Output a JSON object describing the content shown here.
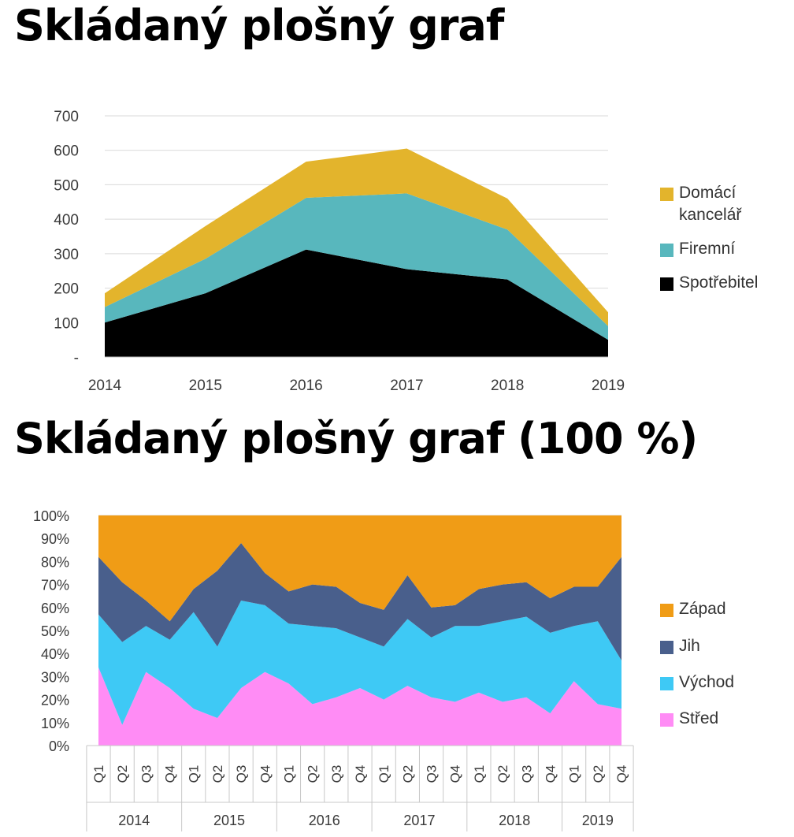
{
  "titles": {
    "stacked_area": "Skládaný plošný graf",
    "stacked_area_100": "Skládaný plošný graf (100 %)"
  },
  "chart_data": [
    {
      "type": "area",
      "stacked": true,
      "title": "Skládaný plošný graf",
      "x": [
        "2014",
        "2015",
        "2016",
        "2017",
        "2018",
        "2019"
      ],
      "series": [
        {
          "name": "Spotřebitel",
          "values": [
            100,
            185,
            312,
            255,
            225,
            50
          ],
          "color": "#000000"
        },
        {
          "name": "Firemní",
          "values": [
            45,
            100,
            150,
            220,
            145,
            40
          ],
          "color": "#58b7bd"
        },
        {
          "name": "Domácí kancelář",
          "values": [
            40,
            95,
            105,
            130,
            90,
            40
          ],
          "color": "#e3b42c"
        }
      ],
      "ylim": [
        0,
        700
      ],
      "yticks": [
        "-",
        "100",
        "200",
        "300",
        "400",
        "500",
        "600",
        "700"
      ],
      "grid": true,
      "legend": "right"
    },
    {
      "type": "area",
      "stacked": true,
      "percent": true,
      "title": "Skládaný plošný graf (100 %)",
      "quarters": [
        "Q1",
        "Q2",
        "Q3",
        "Q4"
      ],
      "years": [
        "2014",
        "2015",
        "2016",
        "2017",
        "2018",
        "2019"
      ],
      "series": [
        {
          "name": "Střed",
          "values": [
            34,
            9,
            32,
            25,
            16,
            12,
            25,
            32,
            27,
            18,
            21,
            25,
            20,
            26,
            21,
            19,
            23,
            19,
            21,
            14,
            28,
            18,
            16
          ],
          "color": "#ff8cf5"
        },
        {
          "name": "Východ",
          "values": [
            23,
            36,
            20,
            21,
            42,
            31,
            38,
            29,
            26,
            34,
            30,
            22,
            23,
            29,
            26,
            33,
            29,
            35,
            35,
            35,
            24,
            36,
            21
          ],
          "color": "#3ec9f5"
        },
        {
          "name": "Jih",
          "values": [
            25,
            26,
            11,
            8,
            10,
            33,
            25,
            14,
            14,
            18,
            18,
            15,
            16,
            19,
            13,
            9,
            16,
            16,
            15,
            15,
            17,
            15,
            45
          ],
          "color": "#495f8c"
        },
        {
          "name": "Západ",
          "values": [
            18,
            29,
            37,
            46,
            32,
            24,
            12,
            25,
            33,
            30,
            31,
            38,
            41,
            26,
            40,
            39,
            32,
            30,
            29,
            36,
            31,
            31,
            18
          ],
          "color": "#f09c16"
        }
      ],
      "ylim": [
        0,
        100
      ],
      "yticks": [
        "0%",
        "10%",
        "20%",
        "30%",
        "40%",
        "50%",
        "60%",
        "70%",
        "80%",
        "90%",
        "100%"
      ],
      "grid": true,
      "legend": "right"
    }
  ]
}
